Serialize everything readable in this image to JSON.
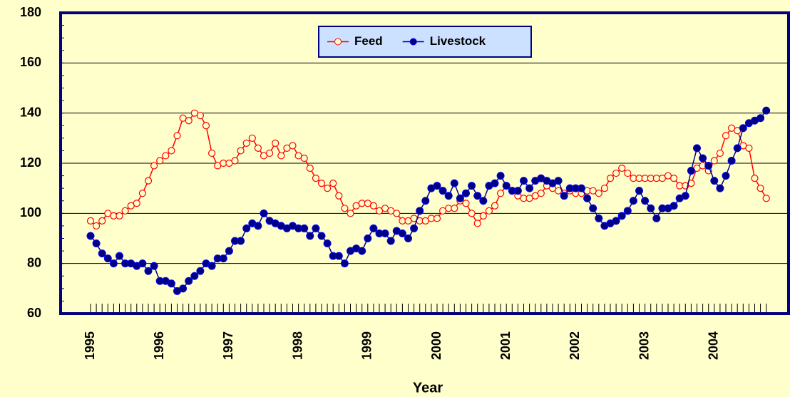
{
  "chart_data": {
    "type": "line",
    "x_label": "Year",
    "categories": [
      "1995",
      null,
      null,
      null,
      null,
      null,
      null,
      null,
      null,
      null,
      null,
      null,
      "1996",
      null,
      null,
      null,
      null,
      null,
      null,
      null,
      null,
      null,
      null,
      null,
      "1997",
      null,
      null,
      null,
      null,
      null,
      null,
      null,
      null,
      null,
      null,
      null,
      "1998",
      null,
      null,
      null,
      null,
      null,
      null,
      null,
      null,
      null,
      null,
      null,
      "1999",
      null,
      null,
      null,
      null,
      null,
      null,
      null,
      null,
      null,
      null,
      null,
      "2000",
      null,
      null,
      null,
      null,
      null,
      null,
      null,
      null,
      null,
      null,
      null,
      "2001",
      null,
      null,
      null,
      null,
      null,
      null,
      null,
      null,
      null,
      null,
      null,
      "2002",
      null,
      null,
      null,
      null,
      null,
      null,
      null,
      null,
      null,
      null,
      null,
      "2003",
      null,
      null,
      null,
      null,
      null,
      null,
      null,
      null,
      null,
      null,
      null,
      "2004",
      null,
      null,
      null,
      null,
      null,
      null,
      null,
      null,
      null
    ],
    "series": [
      {
        "name": "Feed",
        "color": "#ff0000",
        "marker": "open-circle",
        "values": [
          97,
          95,
          97,
          100,
          99,
          99,
          101,
          103,
          104,
          108,
          113,
          119,
          121,
          123,
          125,
          131,
          138,
          137,
          140,
          139,
          135,
          124,
          119,
          120,
          120,
          121,
          125,
          128,
          130,
          126,
          123,
          124,
          128,
          123,
          126,
          127,
          123,
          122,
          118,
          114,
          112,
          110,
          112,
          107,
          102,
          100,
          103,
          104,
          104,
          103,
          101,
          102,
          101,
          100,
          97,
          97,
          98,
          97,
          97,
          98,
          98,
          101,
          102,
          102,
          105,
          104,
          100,
          96,
          99,
          101,
          103,
          108,
          111,
          109,
          107,
          106,
          106,
          107,
          108,
          111,
          110,
          109,
          108,
          109,
          108,
          108,
          109,
          109,
          108,
          110,
          114,
          116,
          118,
          116,
          114,
          114,
          114,
          114,
          114,
          114,
          115,
          114,
          111,
          111,
          112,
          118,
          119,
          117,
          121,
          124,
          131,
          134,
          133,
          127,
          126,
          114,
          110,
          106
        ]
      },
      {
        "name": "Livestock",
        "color": "#000080",
        "marker": "filled-circle",
        "values": [
          91,
          88,
          84,
          82,
          80,
          83,
          80,
          80,
          79,
          80,
          77,
          79,
          73,
          73,
          72,
          69,
          70,
          73,
          75,
          77,
          80,
          79,
          82,
          82,
          85,
          89,
          89,
          94,
          96,
          95,
          100,
          97,
          96,
          95,
          94,
          95,
          94,
          94,
          91,
          94,
          91,
          88,
          83,
          83,
          80,
          85,
          86,
          85,
          90,
          94,
          92,
          92,
          89,
          93,
          92,
          90,
          94,
          101,
          105,
          110,
          111,
          109,
          107,
          112,
          106,
          108,
          111,
          107,
          105,
          111,
          112,
          115,
          111,
          109,
          109,
          113,
          110,
          113,
          114,
          113,
          112,
          113,
          107,
          110,
          110,
          110,
          106,
          102,
          98,
          95,
          96,
          97,
          99,
          101,
          105,
          109,
          105,
          102,
          98,
          102,
          102,
          103,
          106,
          107,
          117,
          126,
          122,
          119,
          113,
          110,
          115,
          121,
          126,
          134,
          136,
          137,
          138,
          141
        ]
      }
    ],
    "ylim": [
      60,
      180
    ],
    "yticks": [
      60,
      80,
      100,
      120,
      140,
      160,
      180
    ],
    "grid": true,
    "legend": "top"
  }
}
